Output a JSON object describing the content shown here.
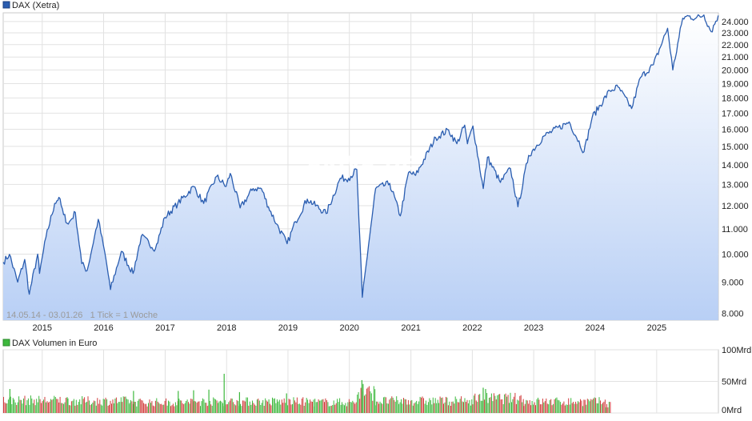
{
  "chart_data": [
    {
      "type": "area",
      "legend": "DAX (Xetra)",
      "series_color": "#2a5db0",
      "fill_color": "#b8cff5",
      "caption": "14.05.14 - 03.01.26   1 Tick = 1 Woche",
      "watermark": "ARIVA.DE",
      "xlim": [
        "2014-05-14",
        "2026-01-03"
      ],
      "ylim": [
        7800,
        24800
      ],
      "y_scale": "log",
      "grid": true,
      "x_ticks": [
        "2015",
        "2016",
        "2017",
        "2018",
        "2019",
        "2020",
        "2021",
        "2022",
        "2023",
        "2024",
        "2025"
      ],
      "y_ticks": [
        "8.000",
        "9.000",
        "10.000",
        "11.000",
        "12.000",
        "13.000",
        "14.000",
        "15.000",
        "16.000",
        "17.000",
        "18.000",
        "19.000",
        "20.000",
        "21.000",
        "22.000",
        "23.000",
        "24.000"
      ],
      "y_tick_values": [
        8000,
        9000,
        10000,
        11000,
        12000,
        13000,
        14000,
        15000,
        16000,
        17000,
        18000,
        19000,
        20000,
        21000,
        22000,
        23000,
        24000
      ],
      "points": [
        [
          "2014-05-14",
          9700
        ],
        [
          "2014-06-20",
          9990
        ],
        [
          "2014-08-08",
          9000
        ],
        [
          "2014-09-19",
          9800
        ],
        [
          "2014-10-16",
          8600
        ],
        [
          "2014-12-05",
          10000
        ],
        [
          "2014-12-16",
          9300
        ],
        [
          "2015-01-23",
          10650
        ],
        [
          "2015-03-16",
          12100
        ],
        [
          "2015-04-10",
          12380
        ],
        [
          "2015-05-08",
          11600
        ],
        [
          "2015-06-05",
          11200
        ],
        [
          "2015-07-17",
          11700
        ],
        [
          "2015-08-24",
          9650
        ],
        [
          "2015-09-25",
          9400
        ],
        [
          "2015-11-30",
          11400
        ],
        [
          "2016-01-15",
          9800
        ],
        [
          "2016-02-11",
          8750
        ],
        [
          "2016-04-15",
          10100
        ],
        [
          "2016-06-24",
          9300
        ],
        [
          "2016-08-12",
          10700
        ],
        [
          "2016-11-04",
          10200
        ],
        [
          "2016-12-30",
          11480
        ],
        [
          "2017-03-17",
          12100
        ],
        [
          "2017-06-20",
          12900
        ],
        [
          "2017-08-18",
          12100
        ],
        [
          "2017-11-03",
          13400
        ],
        [
          "2017-12-29",
          12900
        ],
        [
          "2018-01-23",
          13550
        ],
        [
          "2018-03-23",
          11900
        ],
        [
          "2018-06-08",
          12800
        ],
        [
          "2018-07-27",
          12800
        ],
        [
          "2018-09-07",
          11950
        ],
        [
          "2018-10-26",
          11200
        ],
        [
          "2018-12-27",
          10400
        ],
        [
          "2019-02-15",
          11300
        ],
        [
          "2019-04-26",
          12300
        ],
        [
          "2019-08-16",
          11650
        ],
        [
          "2019-11-08",
          13300
        ],
        [
          "2019-12-27",
          13300
        ],
        [
          "2020-02-14",
          13750
        ],
        [
          "2020-03-18",
          8500
        ],
        [
          "2020-04-24",
          10350
        ],
        [
          "2020-06-05",
          12800
        ],
        [
          "2020-08-28",
          13050
        ],
        [
          "2020-10-30",
          11550
        ],
        [
          "2020-12-18",
          13600
        ],
        [
          "2021-01-29",
          13450
        ],
        [
          "2021-05-28",
          15500
        ],
        [
          "2021-08-13",
          15950
        ],
        [
          "2021-10-01",
          15150
        ],
        [
          "2021-11-17",
          16250
        ],
        [
          "2021-12-03",
          15150
        ],
        [
          "2022-01-05",
          16200
        ],
        [
          "2022-03-07",
          12800
        ],
        [
          "2022-04-01",
          14400
        ],
        [
          "2022-06-17",
          13100
        ],
        [
          "2022-08-16",
          13800
        ],
        [
          "2022-09-29",
          11950
        ],
        [
          "2022-12-02",
          14500
        ],
        [
          "2023-03-03",
          15600
        ],
        [
          "2023-07-31",
          16450
        ],
        [
          "2023-10-27",
          14700
        ],
        [
          "2023-12-15",
          16750
        ],
        [
          "2024-03-28",
          18500
        ],
        [
          "2024-05-17",
          18750
        ],
        [
          "2024-08-05",
          17300
        ],
        [
          "2024-09-27",
          19450
        ],
        [
          "2024-12-13",
          20400
        ],
        [
          "2025-03-07",
          23400
        ],
        [
          "2025-04-07",
          20000
        ],
        [
          "2025-06-05",
          24300
        ],
        [
          "2025-07-10",
          24500
        ],
        [
          "2025-08-22",
          24300
        ],
        [
          "2025-10-09",
          24600
        ],
        [
          "2025-11-21",
          23100
        ],
        [
          "2026-01-02",
          24550
        ]
      ]
    },
    {
      "type": "bar",
      "legend": "DAX Volumen in Euro",
      "legend_color": "#3db83d",
      "up_color": "#3db83d",
      "down_color": "#d13b3b",
      "ylim": [
        0,
        100
      ],
      "y_ticks": [
        "0Mrd",
        "50Mrd",
        "100Mrd"
      ],
      "y_tick_values": [
        0,
        50,
        100
      ],
      "y_unit": "Mrd",
      "bars": [
        {
          "start": "2014-05-14",
          "end": "2015-06-01",
          "typical": 20
        },
        {
          "start": "2015-06-01",
          "end": "2016-06-01",
          "typical": 19
        },
        {
          "start": "2016-06-01",
          "end": "2017-06-01",
          "typical": 17
        },
        {
          "start": "2017-06-01",
          "end": "2018-06-01",
          "typical": 18
        },
        {
          "start": "2018-06-01",
          "end": "2019-06-01",
          "typical": 18
        },
        {
          "start": "2019-06-01",
          "end": "2020-02-15",
          "typical": 17
        },
        {
          "start": "2020-02-15",
          "end": "2020-06-01",
          "typical": 32
        },
        {
          "start": "2020-06-01",
          "end": "2022-01-01",
          "typical": 19
        },
        {
          "start": "2022-01-01",
          "end": "2022-11-01",
          "typical": 23
        },
        {
          "start": "2022-11-01",
          "end": "2024-03-01",
          "typical": 18
        },
        {
          "start": "2024-03-01",
          "end": "2024-04-01",
          "typical": 14
        }
      ],
      "spikes": [
        {
          "date": "2014-06-20",
          "value": 38
        },
        {
          "date": "2016-06-24",
          "value": 35
        },
        {
          "date": "2017-03-17",
          "value": 35
        },
        {
          "date": "2017-06-16",
          "value": 36
        },
        {
          "date": "2017-09-15",
          "value": 37
        },
        {
          "date": "2017-12-15",
          "value": 62
        },
        {
          "date": "2018-03-16",
          "value": 33
        },
        {
          "date": "2018-12-21",
          "value": 31
        },
        {
          "date": "2020-03-13",
          "value": 52
        },
        {
          "date": "2020-03-20",
          "value": 46
        },
        {
          "date": "2022-03-04",
          "value": 40
        },
        {
          "date": "2022-03-18",
          "value": 38
        }
      ]
    }
  ]
}
